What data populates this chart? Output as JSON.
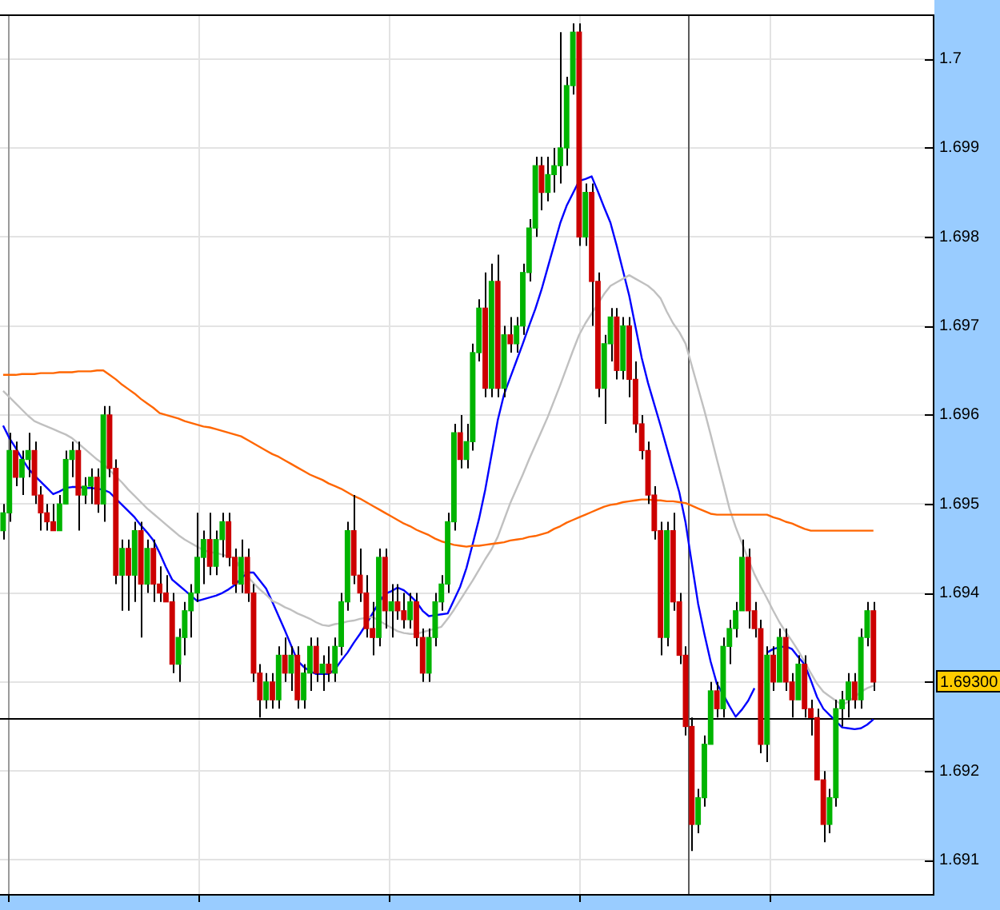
{
  "chart_data": {
    "type": "candlestick",
    "categories": [
      null,
      null,
      null,
      null,
      null,
      null,
      null,
      null,
      null,
      null,
      null,
      null,
      null,
      null,
      null,
      null,
      null,
      null,
      null,
      null,
      null,
      null,
      null,
      null,
      null,
      null,
      null,
      null,
      null,
      null,
      null,
      null,
      null,
      null,
      null,
      null,
      null,
      null,
      null,
      null,
      null,
      null,
      null,
      null,
      null,
      null,
      null,
      null,
      null,
      null,
      null,
      null,
      null,
      null,
      null,
      null,
      null,
      null,
      null,
      null,
      null,
      null,
      null,
      null,
      null,
      null,
      null,
      null,
      null,
      null,
      null,
      null,
      null,
      null,
      null,
      null,
      null,
      null,
      null,
      null,
      null,
      null,
      null,
      null,
      null,
      null,
      null,
      null,
      null,
      null,
      null,
      null,
      null,
      null,
      null,
      null,
      null,
      null,
      null,
      null,
      null,
      null,
      null,
      null,
      null,
      null,
      null,
      null,
      null,
      null,
      null,
      null,
      null,
      null,
      null,
      null,
      null,
      null,
      null,
      null,
      null,
      null,
      null,
      null,
      null,
      null,
      null,
      null,
      null,
      null,
      null,
      null,
      null,
      null,
      null,
      null,
      null,
      null,
      null,
      null
    ],
    "ohlc": [
      [
        1.6947,
        1.695,
        1.6946,
        1.6949
      ],
      [
        1.6949,
        1.6958,
        1.6948,
        1.6956
      ],
      [
        1.6956,
        1.6957,
        1.6952,
        1.6953
      ],
      [
        1.6953,
        1.6956,
        1.6951,
        1.6955
      ],
      [
        1.6955,
        1.6958,
        1.6953,
        1.6956
      ],
      [
        1.6956,
        1.6957,
        1.695,
        1.6951
      ],
      [
        1.6951,
        1.6952,
        1.6947,
        1.6949
      ],
      [
        1.6949,
        1.695,
        1.6947,
        1.6948
      ],
      [
        1.6948,
        1.695,
        1.6947,
        1.6947
      ],
      [
        1.6947,
        1.6951,
        1.6947,
        1.695
      ],
      [
        1.695,
        1.6956,
        1.695,
        1.6955
      ],
      [
        1.6955,
        1.6957,
        1.6953,
        1.6956
      ],
      [
        1.6956,
        1.6957,
        1.6947,
        1.6951
      ],
      [
        1.6951,
        1.6953,
        1.695,
        1.6952
      ],
      [
        1.6952,
        1.6954,
        1.695,
        1.6953
      ],
      [
        1.6953,
        1.6954,
        1.6949,
        1.695
      ],
      [
        1.695,
        1.6961,
        1.6948,
        1.696
      ],
      [
        1.696,
        1.6961,
        1.6953,
        1.6954
      ],
      [
        1.6954,
        1.6955,
        1.6941,
        1.6942
      ],
      [
        1.6942,
        1.6946,
        1.6938,
        1.6945
      ],
      [
        1.6945,
        1.6946,
        1.6938,
        1.6942
      ],
      [
        1.6942,
        1.6948,
        1.6939,
        1.6947
      ],
      [
        1.6947,
        1.6948,
        1.6935,
        1.6941
      ],
      [
        1.6941,
        1.6946,
        1.694,
        1.6945
      ],
      [
        1.6945,
        1.6946,
        1.6939,
        1.6941
      ],
      [
        1.6941,
        1.6943,
        1.6939,
        1.694
      ],
      [
        1.694,
        1.6942,
        1.6939,
        1.6939
      ],
      [
        1.6939,
        1.694,
        1.6931,
        1.6932
      ],
      [
        1.6932,
        1.6936,
        1.693,
        1.6935
      ],
      [
        1.6935,
        1.6939,
        1.6933,
        1.6938
      ],
      [
        1.6938,
        1.6941,
        1.6935,
        1.694
      ],
      [
        1.694,
        1.6949,
        1.6939,
        1.6944
      ],
      [
        1.6944,
        1.6947,
        1.6941,
        1.6946
      ],
      [
        1.6946,
        1.6949,
        1.6942,
        1.6943
      ],
      [
        1.6943,
        1.6947,
        1.6942,
        1.6946
      ],
      [
        1.6946,
        1.6949,
        1.6944,
        1.6948
      ],
      [
        1.6948,
        1.6949,
        1.6943,
        1.6944
      ],
      [
        1.6944,
        1.6945,
        1.694,
        1.6941
      ],
      [
        1.6941,
        1.6946,
        1.694,
        1.6944
      ],
      [
        1.6944,
        1.6945,
        1.6939,
        1.694
      ],
      [
        1.694,
        1.6941,
        1.693,
        1.6931
      ],
      [
        1.6931,
        1.6932,
        1.6926,
        1.6928
      ],
      [
        1.6928,
        1.6931,
        1.6927,
        1.693
      ],
      [
        1.693,
        1.6931,
        1.6927,
        1.6928
      ],
      [
        1.6928,
        1.6934,
        1.6927,
        1.6933
      ],
      [
        1.6933,
        1.6935,
        1.693,
        1.6931
      ],
      [
        1.6931,
        1.6934,
        1.6929,
        1.6933
      ],
      [
        1.6933,
        1.6934,
        1.6927,
        1.6928
      ],
      [
        1.6928,
        1.6932,
        1.6927,
        1.6931
      ],
      [
        1.6931,
        1.6935,
        1.6929,
        1.6934
      ],
      [
        1.6934,
        1.6935,
        1.693,
        1.6931
      ],
      [
        1.6931,
        1.6933,
        1.6929,
        1.6932
      ],
      [
        1.6932,
        1.6934,
        1.693,
        1.6931
      ],
      [
        1.6931,
        1.6935,
        1.693,
        1.6934
      ],
      [
        1.6934,
        1.694,
        1.6933,
        1.6939
      ],
      [
        1.6939,
        1.6948,
        1.6938,
        1.6947
      ],
      [
        1.6947,
        1.6951,
        1.6941,
        1.6942
      ],
      [
        1.6942,
        1.6945,
        1.6939,
        1.694
      ],
      [
        1.694,
        1.6942,
        1.6935,
        1.6936
      ],
      [
        1.6936,
        1.6939,
        1.6933,
        1.6935
      ],
      [
        1.6935,
        1.6945,
        1.6934,
        1.6944
      ],
      [
        1.6944,
        1.6945,
        1.6936,
        1.6938
      ],
      [
        1.6938,
        1.6941,
        1.6935,
        1.6939
      ],
      [
        1.6939,
        1.6941,
        1.6937,
        1.6938
      ],
      [
        1.6938,
        1.694,
        1.6936,
        1.6937
      ],
      [
        1.6937,
        1.694,
        1.6936,
        1.6939
      ],
      [
        1.6939,
        1.694,
        1.6934,
        1.6935
      ],
      [
        1.6935,
        1.6936,
        1.693,
        1.6931
      ],
      [
        1.6931,
        1.6936,
        1.693,
        1.6935
      ],
      [
        1.6935,
        1.694,
        1.6934,
        1.6939
      ],
      [
        1.6939,
        1.6942,
        1.6938,
        1.6941
      ],
      [
        1.6941,
        1.6949,
        1.694,
        1.6948
      ],
      [
        1.6948,
        1.6959,
        1.6947,
        1.6958
      ],
      [
        1.6958,
        1.696,
        1.6954,
        1.6955
      ],
      [
        1.6955,
        1.6959,
        1.6954,
        1.6957
      ],
      [
        1.6957,
        1.6968,
        1.6956,
        1.6967
      ],
      [
        1.6967,
        1.6973,
        1.6966,
        1.6972
      ],
      [
        1.6972,
        1.6976,
        1.6962,
        1.6963
      ],
      [
        1.6963,
        1.6977,
        1.6962,
        1.6975
      ],
      [
        1.6975,
        1.6978,
        1.6962,
        1.6963
      ],
      [
        1.6963,
        1.697,
        1.6962,
        1.6969
      ],
      [
        1.6969,
        1.6971,
        1.6967,
        1.6968
      ],
      [
        1.6968,
        1.6971,
        1.6967,
        1.697
      ],
      [
        1.697,
        1.6977,
        1.6969,
        1.6976
      ],
      [
        1.6976,
        1.6982,
        1.6975,
        1.6981
      ],
      [
        1.6981,
        1.6989,
        1.698,
        1.6988
      ],
      [
        1.6988,
        1.6989,
        1.6983,
        1.6985
      ],
      [
        1.6985,
        1.6989,
        1.6984,
        1.6987
      ],
      [
        1.6987,
        1.699,
        1.6985,
        1.6988
      ],
      [
        1.6988,
        1.7003,
        1.6986,
        1.699
      ],
      [
        1.699,
        1.6998,
        1.6988,
        1.6997
      ],
      [
        1.6997,
        1.7004,
        1.6996,
        1.7003
      ],
      [
        1.7003,
        1.7004,
        1.6979,
        1.698
      ],
      [
        1.698,
        1.6986,
        1.6979,
        1.6985
      ],
      [
        1.6985,
        1.6986,
        1.697,
        1.6975
      ],
      [
        1.6975,
        1.6976,
        1.6962,
        1.6963
      ],
      [
        1.6963,
        1.6969,
        1.6959,
        1.6968
      ],
      [
        1.6968,
        1.6972,
        1.6966,
        1.6971
      ],
      [
        1.6971,
        1.6972,
        1.6964,
        1.6965
      ],
      [
        1.6965,
        1.6971,
        1.6964,
        1.697
      ],
      [
        1.697,
        1.6971,
        1.6962,
        1.6964
      ],
      [
        1.6964,
        1.6966,
        1.6958,
        1.6959
      ],
      [
        1.6959,
        1.696,
        1.6955,
        1.6956
      ],
      [
        1.6956,
        1.6957,
        1.695,
        1.6951
      ],
      [
        1.6951,
        1.6952,
        1.6946,
        1.6947
      ],
      [
        1.6947,
        1.6948,
        1.6933,
        1.6935
      ],
      [
        1.6935,
        1.6948,
        1.6934,
        1.6947
      ],
      [
        1.6947,
        1.6949,
        1.6938,
        1.6939
      ],
      [
        1.6939,
        1.694,
        1.6932,
        1.6933
      ],
      [
        1.6933,
        1.6934,
        1.6924,
        1.6925
      ],
      [
        1.6925,
        1.6926,
        1.6911,
        1.6914
      ],
      [
        1.6914,
        1.6918,
        1.6913,
        1.6917
      ],
      [
        1.6917,
        1.6924,
        1.6916,
        1.6923
      ],
      [
        1.6923,
        1.693,
        1.6923,
        1.6929
      ],
      [
        1.6929,
        1.693,
        1.6926,
        1.6927
      ],
      [
        1.6927,
        1.6935,
        1.6926,
        1.6934
      ],
      [
        1.6934,
        1.6937,
        1.6932,
        1.6936
      ],
      [
        1.6936,
        1.6939,
        1.6935,
        1.6938
      ],
      [
        1.6938,
        1.6946,
        1.6938,
        1.6944
      ],
      [
        1.6944,
        1.6945,
        1.6936,
        1.6938
      ],
      [
        1.6938,
        1.6939,
        1.6935,
        1.6936
      ],
      [
        1.6936,
        1.6937,
        1.6922,
        1.6923
      ],
      [
        1.6923,
        1.6934,
        1.6921,
        1.6933
      ],
      [
        1.6933,
        1.6934,
        1.6929,
        1.693
      ],
      [
        1.693,
        1.6936,
        1.693,
        1.6935
      ],
      [
        1.6935,
        1.6936,
        1.6929,
        1.693
      ],
      [
        1.693,
        1.6931,
        1.6926,
        1.6928
      ],
      [
        1.6928,
        1.6933,
        1.6928,
        1.6932
      ],
      [
        1.6932,
        1.6933,
        1.6926,
        1.6927
      ],
      [
        1.6927,
        1.6928,
        1.6924,
        1.6926
      ],
      [
        1.6926,
        1.6927,
        1.6919,
        1.6919
      ],
      [
        1.6919,
        1.692,
        1.6912,
        1.6914
      ],
      [
        1.6914,
        1.6918,
        1.6913,
        1.6917
      ],
      [
        1.6917,
        1.6928,
        1.6916,
        1.6927
      ],
      [
        1.6927,
        1.6929,
        1.6925,
        1.6928
      ],
      [
        1.6928,
        1.6931,
        1.6926,
        1.693
      ],
      [
        1.693,
        1.6931,
        1.6927,
        1.6928
      ],
      [
        1.6928,
        1.6936,
        1.6927,
        1.6935
      ],
      [
        1.6935,
        1.6939,
        1.6934,
        1.6938
      ],
      [
        1.6938,
        1.6939,
        1.6929,
        1.693
      ]
    ],
    "colors": [
      "#00b400",
      "#00b400",
      "#cc0000",
      "#00b400",
      "#00b400",
      "#cc0000",
      "#cc0000",
      "#cc0000",
      "#cc0000",
      "#00b400",
      "#00b400",
      "#00b400",
      "#cc0000",
      "#00b400",
      "#00b400",
      "#cc0000",
      "#00b400",
      "#cc0000",
      "#cc0000",
      "#00b400",
      "#cc0000",
      "#00b400",
      "#cc0000",
      "#00b400",
      "#cc0000",
      "#cc0000",
      "#cc0000",
      "#cc0000",
      "#00b400",
      "#00b400",
      "#00b400",
      "#00b400",
      "#00b400",
      "#cc0000",
      "#00b400",
      "#00b400",
      "#cc0000",
      "#cc0000",
      "#00b400",
      "#cc0000",
      "#cc0000",
      "#cc0000",
      "#00b400",
      "#cc0000",
      "#00b400",
      "#cc0000",
      "#00b400",
      "#cc0000",
      "#00b400",
      "#00b400",
      "#cc0000",
      "#00b400",
      "#cc0000",
      "#00b400",
      "#00b400",
      "#00b400",
      "#cc0000",
      "#cc0000",
      "#cc0000",
      "#cc0000",
      "#00b400",
      "#cc0000",
      "#00b400",
      "#cc0000",
      "#cc0000",
      "#00b400",
      "#cc0000",
      "#cc0000",
      "#00b400",
      "#00b400",
      "#00b400",
      "#00b400",
      "#00b400",
      "#cc0000",
      "#00b400",
      "#00b400",
      "#00b400",
      "#cc0000",
      "#00b400",
      "#cc0000",
      "#00b400",
      "#cc0000",
      "#00b400",
      "#00b400",
      "#00b400",
      "#00b400",
      "#cc0000",
      "#00b400",
      "#00b400",
      "#00b400",
      "#00b400",
      "#00b400",
      "#cc0000",
      "#00b400",
      "#cc0000",
      "#cc0000",
      "#00b400",
      "#00b400",
      "#cc0000",
      "#00b400",
      "#cc0000",
      "#cc0000",
      "#cc0000",
      "#cc0000",
      "#cc0000",
      "#cc0000",
      "#00b400",
      "#cc0000",
      "#cc0000",
      "#cc0000",
      "#cc0000",
      "#00b400",
      "#00b400",
      "#00b400",
      "#cc0000",
      "#00b400",
      "#00b400",
      "#00b400",
      "#00b400",
      "#cc0000",
      "#cc0000",
      "#cc0000",
      "#00b400",
      "#cc0000",
      "#00b400",
      "#cc0000",
      "#cc0000",
      "#00b400",
      "#cc0000",
      "#cc0000",
      "#cc0000",
      "#cc0000",
      "#00b400",
      "#00b400",
      "#00b400",
      "#00b400",
      "#cc0000",
      "#00b400",
      "#00b400",
      "#cc0000"
    ],
    "series": [
      {
        "type": "line",
        "color": "#ff6600",
        "values": [
          1.69645,
          1.69645,
          1.69645,
          1.69646,
          1.69646,
          1.69646,
          1.69647,
          1.69647,
          1.69647,
          1.69648,
          1.69648,
          1.69648,
          1.69649,
          1.69649,
          1.69649,
          1.6965,
          1.6965,
          1.69645,
          1.6964,
          1.69634,
          1.69629,
          1.69624,
          1.69618,
          1.69613,
          1.69608,
          1.69602,
          1.696,
          1.69598,
          1.69596,
          1.69593,
          1.69591,
          1.69589,
          1.69587,
          1.69586,
          1.69584,
          1.69582,
          1.6958,
          1.69578,
          1.69576,
          1.69572,
          1.69568,
          1.69564,
          1.6956,
          1.69556,
          1.69553,
          1.69549,
          1.69545,
          1.69541,
          1.69537,
          1.69533,
          1.6953,
          1.69527,
          1.69523,
          1.6952,
          1.69517,
          1.69513,
          1.69509,
          1.69506,
          1.69502,
          1.69498,
          1.69494,
          1.6949,
          1.69486,
          1.69482,
          1.69478,
          1.69475,
          1.69471,
          1.69468,
          1.69465,
          1.69461,
          1.69458,
          1.69456,
          1.69454,
          1.69453,
          1.69452,
          1.69453,
          1.69453,
          1.69454,
          1.69455,
          1.69456,
          1.69457,
          1.69459,
          1.6946,
          1.69461,
          1.69463,
          1.69464,
          1.69466,
          1.69468,
          1.69472,
          1.69475,
          1.69479,
          1.69482,
          1.69485,
          1.69488,
          1.69491,
          1.69494,
          1.69497,
          1.69499,
          1.695,
          1.69502,
          1.69503,
          1.69504,
          1.69505,
          1.69505,
          1.69504,
          1.69504,
          1.69503,
          1.69503,
          1.69502,
          1.69501,
          1.69498,
          1.69495,
          1.69492,
          1.69489,
          1.69488,
          1.69488,
          1.69488,
          1.69488,
          1.69488,
          1.69488,
          1.69488,
          1.69488,
          1.69488,
          1.69485,
          1.69483,
          1.6948,
          1.69478,
          1.69475,
          1.69472,
          1.6947,
          1.6947,
          1.6947,
          1.6947,
          1.6947,
          1.6947,
          1.6947,
          1.6947,
          1.6947,
          1.6947,
          1.6947
        ]
      },
      {
        "type": "line",
        "color": "#c0c0c0",
        "values": [
          1.69627,
          1.6962,
          1.69613,
          1.69606,
          1.69599,
          1.69593,
          1.6959,
          1.69587,
          1.69584,
          1.69581,
          1.69578,
          1.69574,
          1.69568,
          1.69562,
          1.69556,
          1.6955,
          1.69545,
          1.69538,
          1.69531,
          1.69524,
          1.69516,
          1.69509,
          1.69502,
          1.69495,
          1.69489,
          1.69483,
          1.69477,
          1.69471,
          1.69465,
          1.6946,
          1.69456,
          1.69452,
          1.69448,
          1.69446,
          1.69445,
          1.69443,
          1.69441,
          1.69439,
          1.69426,
          1.69419,
          1.69411,
          1.69404,
          1.69398,
          1.69391,
          1.69388,
          1.69384,
          1.69381,
          1.69377,
          1.69374,
          1.69371,
          1.69367,
          1.69364,
          1.69363,
          1.69365,
          1.69366,
          1.69368,
          1.69369,
          1.69371,
          1.69372,
          1.69373,
          1.69369,
          1.69365,
          1.69361,
          1.69357,
          1.69355,
          1.69354,
          1.69354,
          1.69356,
          1.69358,
          1.6936,
          1.69362,
          1.69371,
          1.69381,
          1.69392,
          1.69403,
          1.69414,
          1.69426,
          1.69438,
          1.69449,
          1.69463,
          1.69482,
          1.69501,
          1.69517,
          1.69533,
          1.6955,
          1.69566,
          1.69582,
          1.69598,
          1.69616,
          1.69634,
          1.69653,
          1.69672,
          1.6969,
          1.69703,
          1.69714,
          1.69725,
          1.69736,
          1.69745,
          1.69749,
          1.69753,
          1.69757,
          1.69753,
          1.69749,
          1.69745,
          1.69739,
          1.69731,
          1.69716,
          1.69703,
          1.69693,
          1.6968,
          1.69655,
          1.6963,
          1.69605,
          1.69578,
          1.6955,
          1.69523,
          1.69495,
          1.69474,
          1.69456,
          1.69438,
          1.69421,
          1.69407,
          1.69394,
          1.6938,
          1.69367,
          1.69356,
          1.69346,
          1.69335,
          1.69323,
          1.6931,
          1.69298,
          1.69289,
          1.69284,
          1.69279,
          1.69274,
          1.69278,
          1.69283,
          1.69289,
          1.69293,
          1.69296
        ]
      },
      {
        "type": "line",
        "color": "#0000ff",
        "values": [
          1.69588,
          1.69574,
          1.69563,
          1.69551,
          1.6954,
          1.69532,
          1.69525,
          1.69518,
          1.69511,
          1.69514,
          1.69518,
          1.69519,
          1.69519,
          1.69518,
          1.69518,
          1.69517,
          1.69516,
          1.69513,
          1.69506,
          1.69499,
          1.69492,
          1.69485,
          1.69476,
          1.69468,
          1.69459,
          1.69445,
          1.69429,
          1.69415,
          1.69409,
          1.69403,
          1.69397,
          1.69391,
          1.69393,
          1.69395,
          1.69397,
          1.694,
          1.69404,
          1.69409,
          1.69416,
          1.69423,
          1.69423,
          1.69414,
          1.69405,
          1.6939,
          1.69374,
          1.69358,
          1.69341,
          1.69324,
          1.69317,
          1.69312,
          1.69309,
          1.69309,
          1.69309,
          1.69314,
          1.69324,
          1.69333,
          1.69344,
          1.69354,
          1.69365,
          1.69377,
          1.69389,
          1.69399,
          1.69402,
          1.69406,
          1.69403,
          1.69397,
          1.6939,
          1.6938,
          1.69374,
          1.69375,
          1.69376,
          1.69377,
          1.69392,
          1.69407,
          1.69428,
          1.69455,
          1.69483,
          1.69516,
          1.69555,
          1.69594,
          1.69623,
          1.69642,
          1.69661,
          1.6968,
          1.697,
          1.69719,
          1.69741,
          1.69766,
          1.69791,
          1.69816,
          1.69835,
          1.69849,
          1.69863,
          1.69865,
          1.69868,
          1.69851,
          1.69833,
          1.69816,
          1.6979,
          1.69762,
          1.69734,
          1.69699,
          1.69664,
          1.69636,
          1.69612,
          1.69588,
          1.69563,
          1.69538,
          1.69513,
          1.69479,
          1.69433,
          1.69388,
          1.69354,
          1.69323,
          1.69298,
          1.69286,
          1.69273,
          1.69261,
          1.69269,
          1.69279,
          1.69293,
          null,
          1.69333,
          1.69337,
          1.69339,
          1.6934,
          1.69337,
          1.69328,
          1.6932,
          1.69302,
          1.69283,
          1.6927,
          1.69263,
          1.69256,
          1.69249,
          1.69248,
          1.69247,
          1.69248,
          1.69252,
          1.69258
        ]
      }
    ],
    "ylim": [
      1.6906,
      1.7005
    ],
    "yticks": [
      1.691,
      1.692,
      {
        "value": 1.693,
        "label": null
      },
      1.694,
      1.695,
      1.696,
      1.697,
      1.698,
      1.699,
      1.7
    ],
    "grid": true,
    "marker": "none",
    "ref_lines": [
      {
        "axis": "y",
        "value": 1.6926,
        "color": "#000000"
      }
    ],
    "annotations": [
      "1.69300"
    ]
  }
}
